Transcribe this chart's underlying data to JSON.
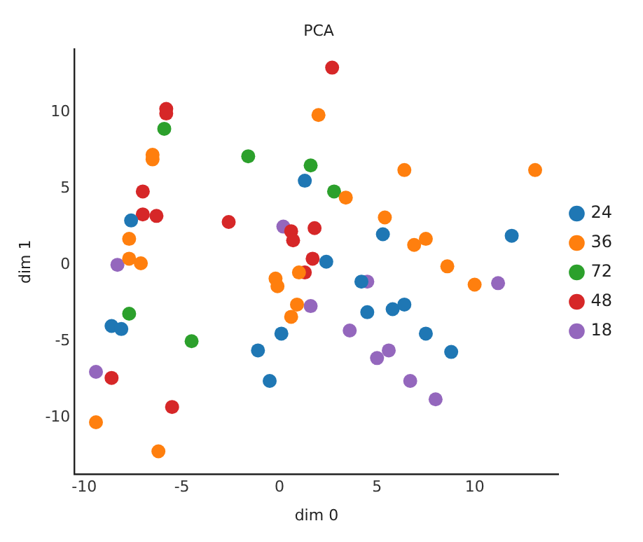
{
  "chart_data": {
    "type": "scatter",
    "title": "PCA",
    "xlabel": "dim 0",
    "ylabel": "dim 1",
    "xlim": [
      -10.5,
      14.3
    ],
    "ylim": [
      -13.7,
      14.1
    ],
    "xticks": [
      -10,
      -5,
      0,
      5,
      10
    ],
    "yticks": [
      -10,
      -5,
      0,
      5,
      10
    ],
    "grid": false,
    "legend": "right",
    "marker": "circle",
    "series": [
      {
        "name": "24",
        "color": "#1f77b4",
        "x": [
          -7.6,
          1.3,
          5.3,
          11.9,
          2.4,
          4.5,
          5.8,
          6.4,
          7.5,
          8.8,
          -8.6,
          -8.1,
          -1.1,
          0.1,
          -0.5,
          4.2
        ],
        "values": [
          2.9,
          5.5,
          2.0,
          1.9,
          0.2,
          -3.1,
          -2.9,
          -2.6,
          -4.5,
          -5.7,
          -4.0,
          -4.2,
          -5.6,
          -4.5,
          -7.6,
          -1.1
        ]
      },
      {
        "name": "36",
        "color": "#ff7f0e",
        "x": [
          2.0,
          13.1,
          6.4,
          3.4,
          5.4,
          7.5,
          6.9,
          8.6,
          10.0,
          -6.5,
          -6.5,
          -7.7,
          -7.7,
          -7.1,
          -0.2,
          -0.1,
          1.0,
          0.9,
          0.6,
          -9.4,
          -6.2
        ],
        "values": [
          9.8,
          6.2,
          6.2,
          4.4,
          3.1,
          1.7,
          1.3,
          -0.1,
          -1.3,
          6.9,
          7.2,
          1.7,
          0.4,
          0.1,
          -0.9,
          -1.4,
          -0.5,
          -2.6,
          -3.4,
          -10.3,
          -12.2
        ]
      },
      {
        "name": "72",
        "color": "#2ca02c",
        "x": [
          -1.6,
          1.6,
          2.8,
          -5.9,
          -7.7,
          -4.5
        ],
        "values": [
          7.1,
          6.5,
          4.8,
          8.9,
          -3.2,
          -5.0
        ]
      },
      {
        "name": "48",
        "color": "#d62728",
        "x": [
          2.7,
          -5.8,
          -5.8,
          -7.0,
          -7.0,
          -6.3,
          -2.6,
          0.6,
          0.7,
          1.8,
          1.7,
          1.3,
          -8.6,
          -5.5
        ],
        "values": [
          12.9,
          10.2,
          9.9,
          4.8,
          3.3,
          3.2,
          2.8,
          2.2,
          1.6,
          2.4,
          0.4,
          -0.5,
          -7.4,
          -9.3
        ]
      },
      {
        "name": "18",
        "color": "#9467bd",
        "x": [
          0.2,
          -8.3,
          4.5,
          11.2,
          1.6,
          3.6,
          5.6,
          5.0,
          6.7,
          8.0,
          -9.4
        ],
        "values": [
          2.5,
          0.0,
          -1.1,
          -1.2,
          -2.7,
          -4.3,
          -5.6,
          -6.1,
          -7.6,
          -8.8,
          -7.0
        ]
      }
    ]
  }
}
